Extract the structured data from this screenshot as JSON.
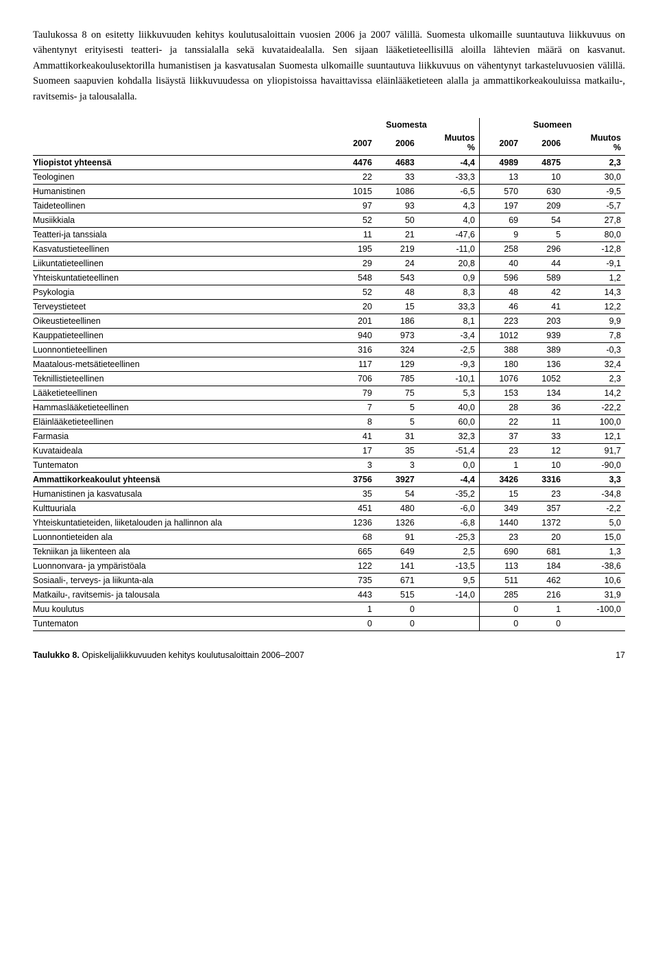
{
  "paragraph": "Taulukossa 8 on esitetty liikkuvuuden kehitys koulutusaloittain vuosien 2006 ja 2007 välillä. Suomesta ulkomaille suuntautuva liikkuvuus on vähentynyt erityisesti teatteri- ja tanssialalla sekä kuvataidealalla. Sen sijaan lääketieteellisillä aloilla lähtevien määrä on kasvanut. Ammattikorkeakoulusektorilla humanistisen ja kasvatusalan Suomesta ulkomaille suuntautuva liikkuvuus on vähentynyt tarkasteluvuosien välillä. Suomeen saapuvien kohdalla lisäystä liikkuvuudessa on yliopistoissa havaittavissa eläinlääketieteen alalla ja ammattikorkeakouluissa matkailu-, ravitsemis- ja talousalalla.",
  "table": {
    "group1": "Suomesta",
    "group2": "Suomeen",
    "columns": [
      "2007",
      "2006",
      "Muutos %",
      "2007",
      "2006",
      "Muutos %"
    ],
    "rows": [
      {
        "label": "Yliopistot yhteensä",
        "bold": true,
        "v": [
          "4476",
          "4683",
          "-4,4",
          "4989",
          "4875",
          "2,3"
        ]
      },
      {
        "label": "Teologinen",
        "v": [
          "22",
          "33",
          "-33,3",
          "13",
          "10",
          "30,0"
        ]
      },
      {
        "label": "Humanistinen",
        "v": [
          "1015",
          "1086",
          "-6,5",
          "570",
          "630",
          "-9,5"
        ]
      },
      {
        "label": "Taideteollinen",
        "v": [
          "97",
          "93",
          "4,3",
          "197",
          "209",
          "-5,7"
        ]
      },
      {
        "label": "Musiikkiala",
        "v": [
          "52",
          "50",
          "4,0",
          "69",
          "54",
          "27,8"
        ]
      },
      {
        "label": "Teatteri-ja tanssiala",
        "v": [
          "11",
          "21",
          "-47,6",
          "9",
          "5",
          "80,0"
        ]
      },
      {
        "label": "Kasvatustieteellinen",
        "v": [
          "195",
          "219",
          "-11,0",
          "258",
          "296",
          "-12,8"
        ]
      },
      {
        "label": "Liikuntatieteellinen",
        "v": [
          "29",
          "24",
          "20,8",
          "40",
          "44",
          "-9,1"
        ]
      },
      {
        "label": "Yhteiskuntatieteellinen",
        "v": [
          "548",
          "543",
          "0,9",
          "596",
          "589",
          "1,2"
        ]
      },
      {
        "label": "Psykologia",
        "v": [
          "52",
          "48",
          "8,3",
          "48",
          "42",
          "14,3"
        ]
      },
      {
        "label": "Terveystieteet",
        "v": [
          "20",
          "15",
          "33,3",
          "46",
          "41",
          "12,2"
        ]
      },
      {
        "label": "Oikeustieteellinen",
        "v": [
          "201",
          "186",
          "8,1",
          "223",
          "203",
          "9,9"
        ]
      },
      {
        "label": "Kauppatieteellinen",
        "v": [
          "940",
          "973",
          "-3,4",
          "1012",
          "939",
          "7,8"
        ]
      },
      {
        "label": "Luonnontieteellinen",
        "v": [
          "316",
          "324",
          "-2,5",
          "388",
          "389",
          "-0,3"
        ]
      },
      {
        "label": "Maatalous-metsätieteellinen",
        "v": [
          "117",
          "129",
          "-9,3",
          "180",
          "136",
          "32,4"
        ]
      },
      {
        "label": "Teknillistieteellinen",
        "v": [
          "706",
          "785",
          "-10,1",
          "1076",
          "1052",
          "2,3"
        ]
      },
      {
        "label": "Lääketieteellinen",
        "v": [
          "79",
          "75",
          "5,3",
          "153",
          "134",
          "14,2"
        ]
      },
      {
        "label": "Hammaslääketieteellinen",
        "v": [
          "7",
          "5",
          "40,0",
          "28",
          "36",
          "-22,2"
        ]
      },
      {
        "label": "Eläinlääketieteellinen",
        "v": [
          "8",
          "5",
          "60,0",
          "22",
          "11",
          "100,0"
        ]
      },
      {
        "label": "Farmasia",
        "v": [
          "41",
          "31",
          "32,3",
          "37",
          "33",
          "12,1"
        ]
      },
      {
        "label": "Kuvataideala",
        "v": [
          "17",
          "35",
          "-51,4",
          "23",
          "12",
          "91,7"
        ]
      },
      {
        "label": "Tuntematon",
        "v": [
          "3",
          "3",
          "0,0",
          "1",
          "10",
          "-90,0"
        ]
      },
      {
        "label": "Ammattikorkeakoulut yhteensä",
        "bold": true,
        "v": [
          "3756",
          "3927",
          "-4,4",
          "3426",
          "3316",
          "3,3"
        ]
      },
      {
        "label": "Humanistinen ja kasvatusala",
        "v": [
          "35",
          "54",
          "-35,2",
          "15",
          "23",
          "-34,8"
        ]
      },
      {
        "label": "Kulttuuriala",
        "v": [
          "451",
          "480",
          "-6,0",
          "349",
          "357",
          "-2,2"
        ]
      },
      {
        "label": "Yhteiskuntatieteiden, liiketalouden ja hallinnon ala",
        "v": [
          "1236",
          "1326",
          "-6,8",
          "1440",
          "1372",
          "5,0"
        ]
      },
      {
        "label": "Luonnontieteiden ala",
        "v": [
          "68",
          "91",
          "-25,3",
          "23",
          "20",
          "15,0"
        ]
      },
      {
        "label": "Tekniikan ja liikenteen ala",
        "v": [
          "665",
          "649",
          "2,5",
          "690",
          "681",
          "1,3"
        ]
      },
      {
        "label": "Luonnonvara- ja ympäristöala",
        "v": [
          "122",
          "141",
          "-13,5",
          "113",
          "184",
          "-38,6"
        ]
      },
      {
        "label": "Sosiaali-, terveys- ja liikunta-ala",
        "v": [
          "735",
          "671",
          "9,5",
          "511",
          "462",
          "10,6"
        ]
      },
      {
        "label": "Matkailu-, ravitsemis- ja talousala",
        "v": [
          "443",
          "515",
          "-14,0",
          "285",
          "216",
          "31,9"
        ]
      },
      {
        "label": "Muu koulutus",
        "v": [
          "1",
          "0",
          "",
          "0",
          "1",
          "-100,0"
        ]
      },
      {
        "label": "Tuntematon",
        "v": [
          "0",
          "0",
          "",
          "0",
          "0",
          ""
        ]
      }
    ]
  },
  "footer": {
    "caption_bold": "Taulukko 8.",
    "caption_rest": " Opiskelijaliikkuvuuden kehitys koulutusaloittain 2006–2007",
    "page": "17"
  }
}
